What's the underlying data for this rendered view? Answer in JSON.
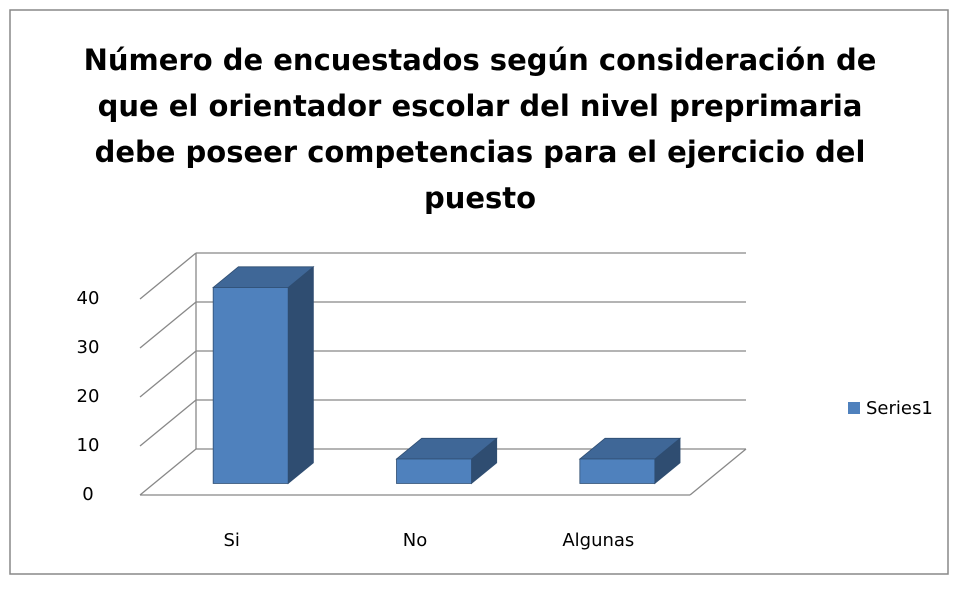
{
  "chart_data": {
    "type": "bar3d",
    "title": "Número de encuestados según consideración de que el orientador escolar del nivel preprimaria debe poseer competencias para el ejercicio del puesto",
    "title_lines": [
      "Número de encuestados según consideración de",
      "que el orientador escolar del nivel preprimaria",
      "debe poseer competencias para el ejercicio del",
      "puesto"
    ],
    "categories": [
      "Si",
      "No",
      "Algunas"
    ],
    "series": [
      {
        "name": "Series1",
        "color": "#4f81bd",
        "values": [
          40,
          5,
          5
        ]
      }
    ],
    "ylim": [
      0,
      40
    ],
    "yticks": [
      0,
      10,
      20,
      30,
      40
    ],
    "grid": true,
    "legend": "right"
  }
}
